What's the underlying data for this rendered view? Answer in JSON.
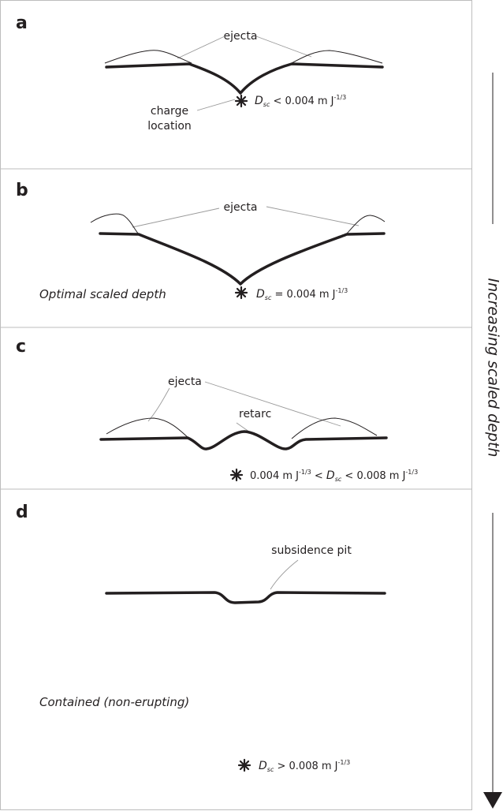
{
  "panels": [
    {
      "label": "a",
      "annotations": [
        "ejecta",
        "charge",
        "location"
      ],
      "formula": [
        {
          "text": "D",
          "kind": "italic"
        },
        {
          "text": "sc",
          "kind": "sub"
        },
        {
          "text": " < 0.004 m J",
          "kind": "normal"
        },
        {
          "text": "-1/3",
          "kind": "sup"
        }
      ]
    },
    {
      "label": "b",
      "annotations": [
        "ejecta"
      ],
      "note": "Optimal scaled depth",
      "formula": [
        {
          "text": "D",
          "kind": "italic"
        },
        {
          "text": "sc",
          "kind": "sub"
        },
        {
          "text": " = 0.004 m J",
          "kind": "normal"
        },
        {
          "text": "-1/3",
          "kind": "sup"
        }
      ]
    },
    {
      "label": "c",
      "annotations": [
        "ejecta",
        "retarc"
      ],
      "formula": [
        {
          "text": "0.004 m J",
          "kind": "normal"
        },
        {
          "text": "-1/3",
          "kind": "sup"
        },
        {
          "text": " < ",
          "kind": "normal"
        },
        {
          "text": "D",
          "kind": "italic"
        },
        {
          "text": "sc",
          "kind": "sub"
        },
        {
          "text": " < 0.008 m J",
          "kind": "normal"
        },
        {
          "text": "-1/3",
          "kind": "sup"
        }
      ]
    },
    {
      "label": "d",
      "annotations": [
        "subsidence pit"
      ],
      "note": "Contained (non-erupting)",
      "formula": [
        {
          "text": "D",
          "kind": "italic"
        },
        {
          "text": "sc",
          "kind": "sub"
        },
        {
          "text": " > 0.008 m J",
          "kind": "normal"
        },
        {
          "text": "-1/3",
          "kind": "sup"
        }
      ]
    }
  ],
  "arrow_label": "Increasing scaled depth"
}
